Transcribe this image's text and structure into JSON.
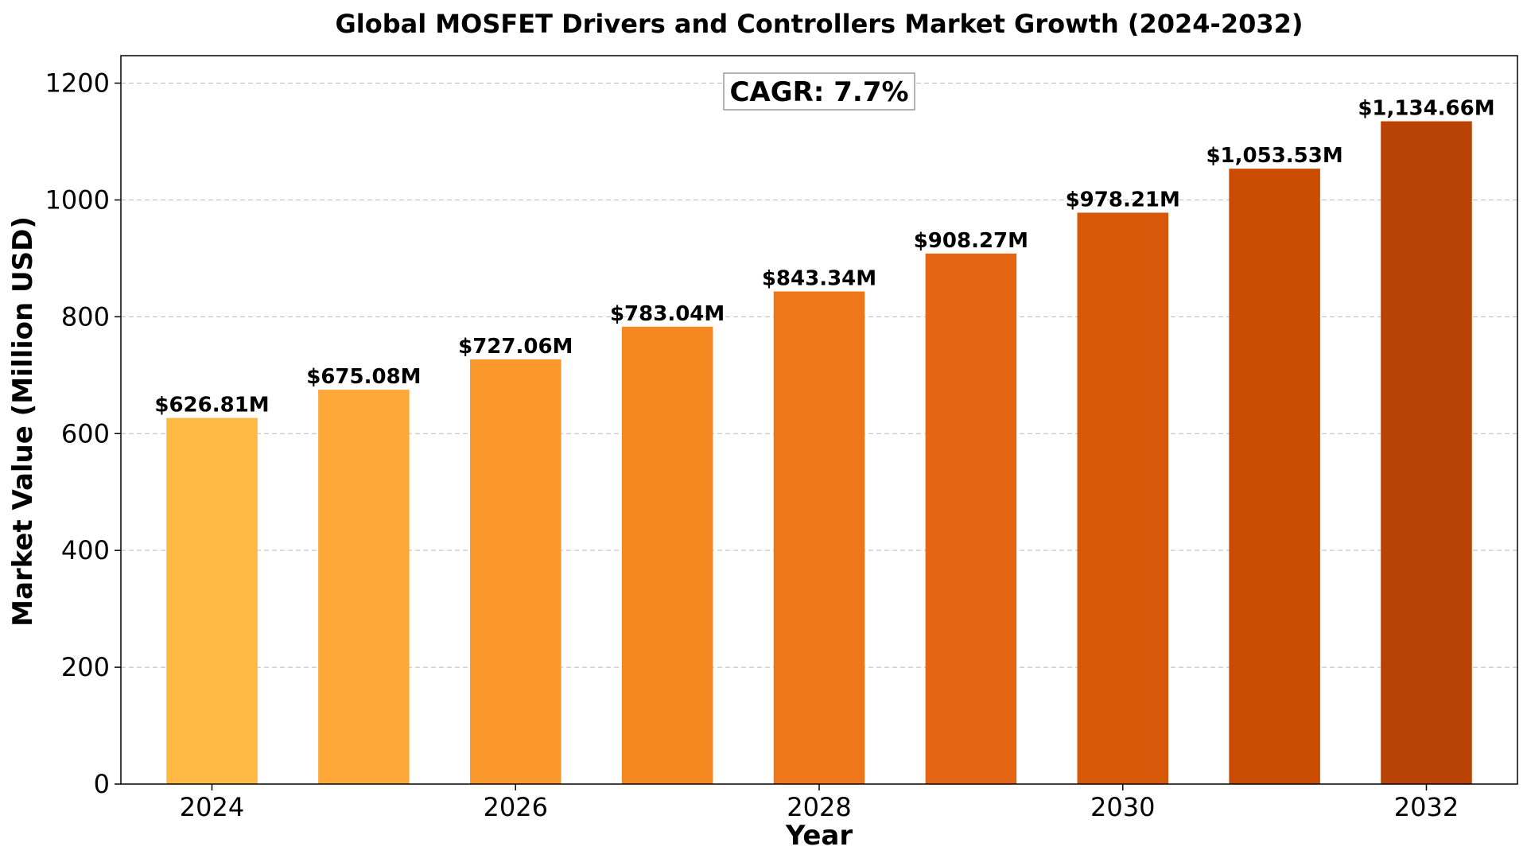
{
  "chart_data": {
    "type": "bar",
    "title": "Global MOSFET Drivers and Controllers Market Growth (2024-2032)",
    "xlabel": "Year",
    "ylabel": "Market Value (Million USD)",
    "x": [
      2024,
      2025,
      2026,
      2027,
      2028,
      2029,
      2030,
      2031,
      2032
    ],
    "values": [
      626.81,
      675.08,
      727.06,
      783.04,
      843.34,
      908.27,
      978.21,
      1053.53,
      1134.66
    ],
    "data_labels": [
      "$626.81M",
      "$675.08M",
      "$727.06M",
      "$783.04M",
      "$843.34M",
      "$908.27M",
      "$978.21M",
      "$1,053.53M",
      "$1,134.66M"
    ],
    "bar_colors": [
      "#FEB844",
      "#FDA838",
      "#FB982B",
      "#F5871F",
      "#EE771B",
      "#E46614",
      "#D8580A",
      "#C94C02",
      "#B84304"
    ],
    "xticks": [
      "2024",
      "2026",
      "2028",
      "2030",
      "2032"
    ],
    "xtick_values": [
      2024,
      2026,
      2028,
      2030,
      2032
    ],
    "yticks": [
      0,
      200,
      400,
      600,
      800,
      1000,
      1200
    ],
    "ylim": [
      0,
      1247
    ],
    "xlim": [
      2023.4,
      2032.6
    ],
    "grid": "y-dashed",
    "annotation": "CAGR: 7.7%"
  }
}
